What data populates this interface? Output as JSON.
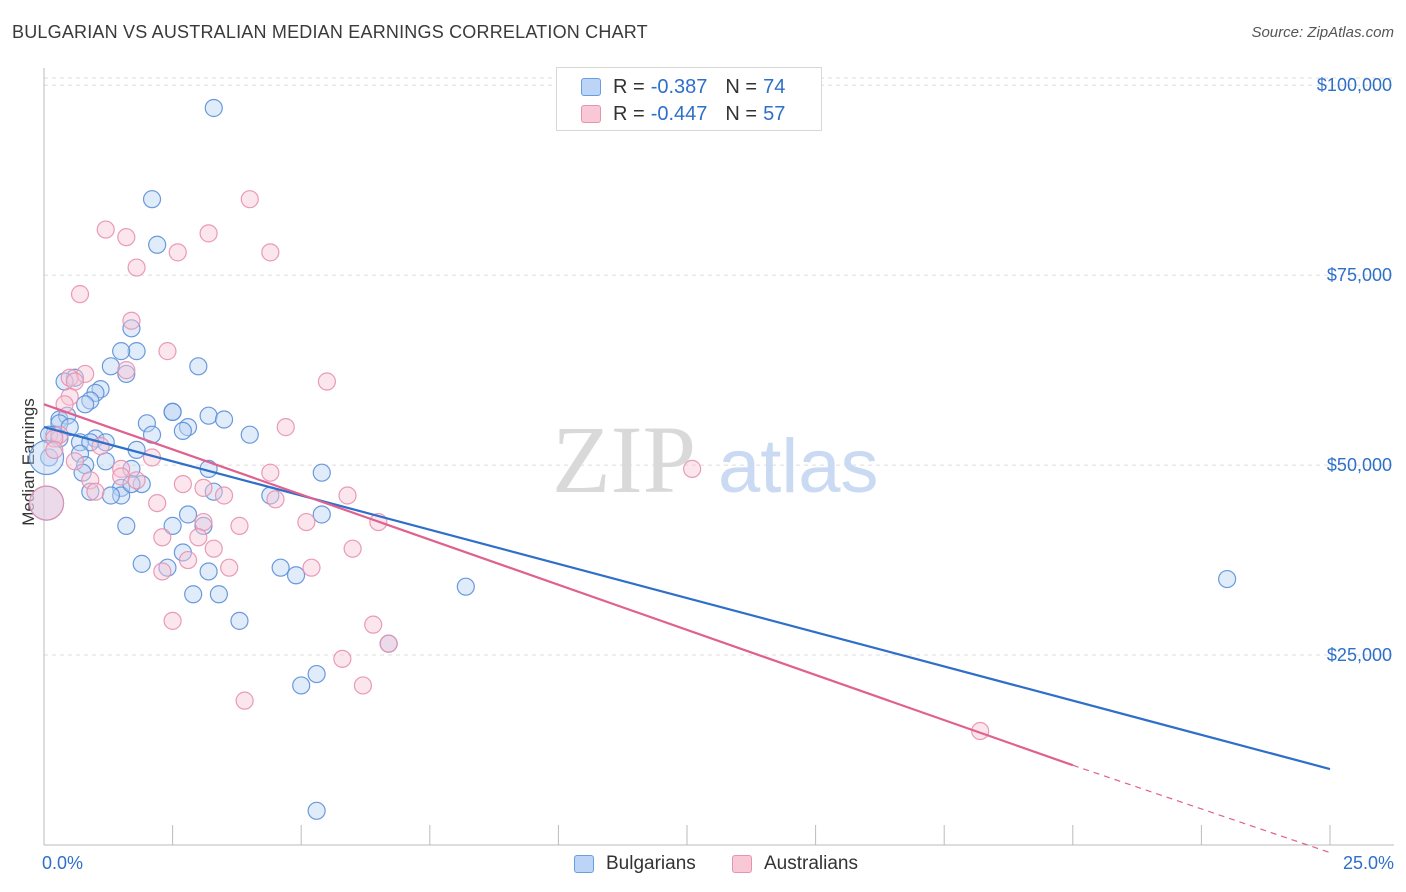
{
  "header": {
    "title": "BULGARIAN VS AUSTRALIAN MEDIAN EARNINGS CORRELATION CHART",
    "source": "Source: ZipAtlas.com"
  },
  "legend": {
    "series1": {
      "r_label": "R =",
      "r_value": "-0.387",
      "n_label": "N =",
      "n_value": "74"
    },
    "series2": {
      "r_label": "R =",
      "r_value": "-0.447",
      "n_label": "N =",
      "n_value": "57"
    }
  },
  "bottom_legend": {
    "series1": "Bulgarians",
    "series2": "Australians"
  },
  "watermark": {
    "part1": "ZIP",
    "part2": "atlas"
  },
  "colors": {
    "blue": "#2e6fc9",
    "blue_fill": "#bcd4f5",
    "pink": "#e0608f",
    "pink_fill": "#f9c8d7",
    "grid": "#dddddd"
  },
  "chart_data": {
    "type": "scatter",
    "title": "BULGARIAN VS AUSTRALIAN MEDIAN EARNINGS CORRELATION CHART",
    "xlabel": "",
    "ylabel": "Median Earnings",
    "xlim": [
      0,
      25
    ],
    "ylim": [
      0,
      102000
    ],
    "x_tick_labels": {
      "left": "0.0%",
      "right": "25.0%"
    },
    "y_ticks": [
      {
        "value": 25000,
        "label": "$25,000"
      },
      {
        "value": 50000,
        "label": "$50,000"
      },
      {
        "value": 75000,
        "label": "$75,000"
      },
      {
        "value": 100000,
        "label": "$100,000"
      }
    ],
    "series": [
      {
        "name": "Bulgarians",
        "color": "#2e6fc9",
        "r": -0.387,
        "n": 74,
        "trend": {
          "x0": 0,
          "y0": 55000,
          "x1": 25,
          "y1": 10000
        },
        "points": [
          [
            3.3,
            97000
          ],
          [
            2.1,
            85000
          ],
          [
            2.2,
            79000
          ],
          [
            1.7,
            68000
          ],
          [
            1.8,
            65000
          ],
          [
            1.5,
            65000
          ],
          [
            1.3,
            63000
          ],
          [
            3.0,
            63000
          ],
          [
            1.6,
            62000
          ],
          [
            0.6,
            61500
          ],
          [
            0.4,
            61000
          ],
          [
            1.1,
            60000
          ],
          [
            1.0,
            59500
          ],
          [
            0.9,
            58500
          ],
          [
            0.8,
            58000
          ],
          [
            2.5,
            57000
          ],
          [
            2.5,
            57000
          ],
          [
            0.3,
            56000
          ],
          [
            0.45,
            56500
          ],
          [
            3.2,
            56500
          ],
          [
            3.5,
            56000
          ],
          [
            2.0,
            55500
          ],
          [
            0.3,
            55500
          ],
          [
            0.5,
            55000
          ],
          [
            2.8,
            55000
          ],
          [
            2.7,
            54500
          ],
          [
            0.2,
            54000
          ],
          [
            0.1,
            54000
          ],
          [
            1.0,
            53500
          ],
          [
            1.2,
            53000
          ],
          [
            0.7,
            53000
          ],
          [
            0.9,
            53000
          ],
          [
            4.0,
            54000
          ],
          [
            2.1,
            54000
          ],
          [
            0.3,
            53500
          ],
          [
            1.8,
            52000
          ],
          [
            0.7,
            51500
          ],
          [
            0.1,
            51000
          ],
          [
            1.2,
            50500
          ],
          [
            0.8,
            50000
          ],
          [
            0.75,
            49000
          ],
          [
            3.2,
            49500
          ],
          [
            1.7,
            49500
          ],
          [
            5.4,
            49000
          ],
          [
            1.5,
            47000
          ],
          [
            1.9,
            47500
          ],
          [
            0.9,
            46500
          ],
          [
            1.5,
            46000
          ],
          [
            3.3,
            46500
          ],
          [
            4.4,
            46000
          ],
          [
            5.4,
            43500
          ],
          [
            3.1,
            42000
          ],
          [
            2.5,
            42000
          ],
          [
            1.6,
            42000
          ],
          [
            2.8,
            43500
          ],
          [
            2.7,
            38500
          ],
          [
            2.4,
            36500
          ],
          [
            1.9,
            37000
          ],
          [
            3.2,
            36000
          ],
          [
            4.6,
            36500
          ],
          [
            4.9,
            35500
          ],
          [
            8.2,
            34000
          ],
          [
            2.9,
            33000
          ],
          [
            3.4,
            33000
          ],
          [
            3.8,
            29500
          ],
          [
            6.7,
            26500
          ],
          [
            5.3,
            22500
          ],
          [
            5.0,
            21000
          ],
          [
            5.3,
            4500
          ],
          [
            23.0,
            35000
          ],
          [
            0.05,
            45000
          ],
          [
            0.05,
            51000
          ],
          [
            1.3,
            46000
          ],
          [
            1.7,
            47500
          ]
        ]
      },
      {
        "name": "Australians",
        "color": "#e0608f",
        "r": -0.447,
        "n": 57,
        "trend": {
          "x0": 0,
          "y0": 58000,
          "x1": 20,
          "y1": 10500,
          "dash_x1": 25,
          "dash_y1": -1000
        },
        "points": [
          [
            4.0,
            85000
          ],
          [
            1.2,
            81000
          ],
          [
            3.2,
            80500
          ],
          [
            1.6,
            80000
          ],
          [
            2.6,
            78000
          ],
          [
            4.4,
            78000
          ],
          [
            1.8,
            76000
          ],
          [
            0.7,
            72500
          ],
          [
            1.7,
            69000
          ],
          [
            2.4,
            65000
          ],
          [
            1.6,
            62500
          ],
          [
            0.5,
            61500
          ],
          [
            0.8,
            62000
          ],
          [
            5.5,
            61000
          ],
          [
            0.6,
            61000
          ],
          [
            0.5,
            59000
          ],
          [
            0.4,
            58000
          ],
          [
            4.7,
            55000
          ],
          [
            0.3,
            54000
          ],
          [
            0.2,
            53500
          ],
          [
            1.1,
            52500
          ],
          [
            0.2,
            52000
          ],
          [
            2.1,
            51000
          ],
          [
            0.6,
            50500
          ],
          [
            1.5,
            49500
          ],
          [
            12.6,
            49500
          ],
          [
            4.4,
            49000
          ],
          [
            1.5,
            48500
          ],
          [
            0.9,
            48000
          ],
          [
            2.7,
            47500
          ],
          [
            3.1,
            47000
          ],
          [
            1.0,
            46500
          ],
          [
            3.5,
            46000
          ],
          [
            5.9,
            46000
          ],
          [
            4.5,
            45500
          ],
          [
            2.2,
            45000
          ],
          [
            6.5,
            42500
          ],
          [
            5.1,
            42500
          ],
          [
            3.1,
            42500
          ],
          [
            3.8,
            42000
          ],
          [
            2.3,
            40500
          ],
          [
            3.0,
            40500
          ],
          [
            6.0,
            39000
          ],
          [
            3.3,
            39000
          ],
          [
            2.8,
            37500
          ],
          [
            5.2,
            36500
          ],
          [
            3.6,
            36500
          ],
          [
            2.3,
            36000
          ],
          [
            2.5,
            29500
          ],
          [
            6.4,
            29000
          ],
          [
            6.7,
            26500
          ],
          [
            5.8,
            24500
          ],
          [
            6.2,
            21000
          ],
          [
            3.9,
            19000
          ],
          [
            18.2,
            15000
          ],
          [
            0.05,
            45000
          ],
          [
            1.8,
            48000
          ]
        ]
      }
    ]
  }
}
